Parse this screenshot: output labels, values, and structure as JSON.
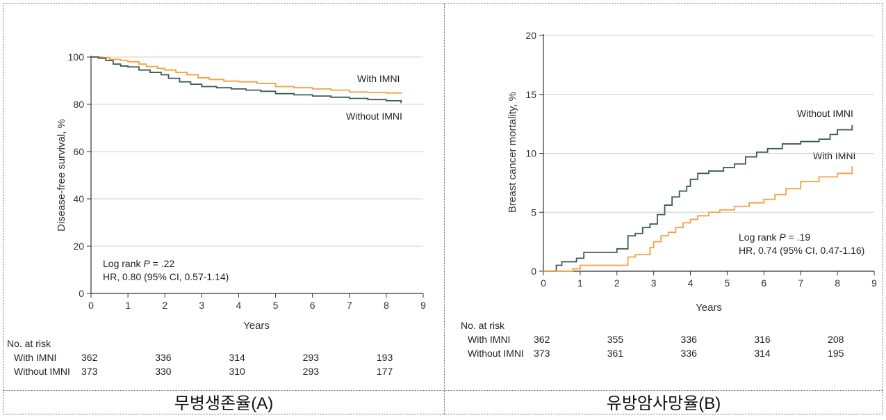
{
  "captions": [
    "무병생존율(A)",
    "유방암사망율(B)"
  ],
  "colors": {
    "with": "#F5A040",
    "without": "#3C5A58",
    "grid": "#CFCFCF",
    "border": "#666666"
  },
  "chart_data": [
    {
      "type": "line",
      "ylabel": "Disease-free survival, %",
      "xlabel": "Years",
      "xlim": [
        0,
        9
      ],
      "ylim": [
        0,
        100
      ],
      "xticks": [
        "0",
        "1",
        "2",
        "3",
        "4",
        "5",
        "6",
        "7",
        "8",
        "9"
      ],
      "yticks": [
        "0",
        "20",
        "40",
        "60",
        "80",
        "100"
      ],
      "grid": "horizontal",
      "series": [
        {
          "name": "With IMNI",
          "key": "with",
          "x": [
            0,
            0.3,
            0.5,
            0.8,
            1.0,
            1.3,
            1.5,
            1.8,
            2.0,
            2.3,
            2.6,
            2.9,
            3.2,
            3.6,
            4.0,
            4.5,
            5.0,
            5.5,
            6.0,
            6.5,
            7.0,
            7.5,
            8.0,
            8.4
          ],
          "y": [
            100,
            99.7,
            99,
            98.6,
            98,
            97,
            96,
            95.2,
            94.5,
            93.5,
            92.5,
            91.2,
            90.5,
            89.8,
            89.5,
            88.8,
            87.5,
            87,
            86.5,
            86,
            85.2,
            85,
            84.8,
            84.5
          ]
        },
        {
          "name": "Without IMNI",
          "key": "without",
          "x": [
            0,
            0.2,
            0.4,
            0.6,
            0.8,
            1.0,
            1.3,
            1.6,
            1.9,
            2.1,
            2.4,
            2.7,
            3.0,
            3.4,
            3.8,
            4.2,
            4.6,
            5.0,
            5.5,
            6.0,
            6.5,
            7.0,
            7.5,
            8.0,
            8.4
          ],
          "y": [
            100,
            99.5,
            98.5,
            97,
            96.2,
            95.8,
            94.5,
            93.5,
            92.5,
            91,
            89.5,
            88.5,
            87.5,
            87,
            86.5,
            86,
            85.5,
            84.5,
            84,
            83.5,
            83,
            82.5,
            82,
            81.5,
            80.5
          ]
        }
      ],
      "annotations": {
        "line1_prefix": "Log rank ",
        "line1_p": "P",
        "line1_suffix": " = .22",
        "line2": "HR, 0.80 (95% CI, 0.57-1.14)"
      },
      "risk_table": {
        "title": "No. at risk",
        "rows": [
          {
            "label": "With IMNI",
            "values": [
              "362",
              "336",
              "314",
              "293",
              "193"
            ]
          },
          {
            "label": "Without IMNI",
            "values": [
              "373",
              "330",
              "310",
              "293",
              "177"
            ]
          }
        ],
        "years": [
          0,
          2,
          4,
          6,
          8
        ]
      }
    },
    {
      "type": "line",
      "ylabel": "Breast cancer mortality, %",
      "xlabel": "Years",
      "xlim": [
        0,
        9
      ],
      "ylim": [
        0,
        20
      ],
      "xticks": [
        "0",
        "1",
        "2",
        "3",
        "4",
        "5",
        "6",
        "7",
        "8",
        "9"
      ],
      "yticks": [
        "0",
        "5",
        "10",
        "15",
        "20"
      ],
      "grid": "horizontal",
      "series": [
        {
          "name": "Without IMNI",
          "key": "without",
          "x": [
            0,
            0.35,
            0.5,
            0.7,
            0.9,
            1.1,
            1.5,
            2.0,
            2.3,
            2.5,
            2.7,
            2.9,
            3.1,
            3.3,
            3.5,
            3.7,
            3.9,
            4.0,
            4.2,
            4.5,
            4.9,
            5.2,
            5.5,
            5.8,
            6.1,
            6.5,
            7.0,
            7.5,
            7.8,
            8.0,
            8.4
          ],
          "y": [
            0,
            0.5,
            0.8,
            0.8,
            1.1,
            1.6,
            1.6,
            1.9,
            3.0,
            3.2,
            3.7,
            4.0,
            4.8,
            5.6,
            6.3,
            6.8,
            7.2,
            7.8,
            8.3,
            8.5,
            8.8,
            9.1,
            9.7,
            10.1,
            10.4,
            10.8,
            11.0,
            11.2,
            11.6,
            12.0,
            12.4
          ]
        },
        {
          "name": "With IMNI",
          "key": "with",
          "x": [
            0,
            0.8,
            1.0,
            1.5,
            2.0,
            2.3,
            2.5,
            2.9,
            3.0,
            3.2,
            3.4,
            3.6,
            3.8,
            4.0,
            4.2,
            4.5,
            4.8,
            5.2,
            5.6,
            6.0,
            6.3,
            6.6,
            7.0,
            7.5,
            8.0,
            8.4
          ],
          "y": [
            0,
            0.2,
            0.5,
            0.5,
            0.5,
            1.2,
            1.4,
            2.0,
            2.5,
            3.0,
            3.3,
            3.7,
            4.1,
            4.4,
            4.7,
            5.0,
            5.2,
            5.5,
            5.8,
            6.1,
            6.5,
            7.0,
            7.6,
            8.0,
            8.3,
            8.9
          ]
        }
      ],
      "annotations": {
        "line1_prefix": "Log rank ",
        "line1_p": "P",
        "line1_suffix": " = .19",
        "line2": "HR, 0.74 (95% CI, 0.47-1.16)"
      },
      "risk_table": {
        "title": "No. at risk",
        "rows": [
          {
            "label": "With IMNI",
            "values": [
              "362",
              "355",
              "336",
              "316",
              "208"
            ]
          },
          {
            "label": "Without IMNI",
            "values": [
              "373",
              "361",
              "336",
              "314",
              "195"
            ]
          }
        ],
        "years": [
          0,
          2,
          4,
          6,
          8
        ]
      }
    }
  ]
}
